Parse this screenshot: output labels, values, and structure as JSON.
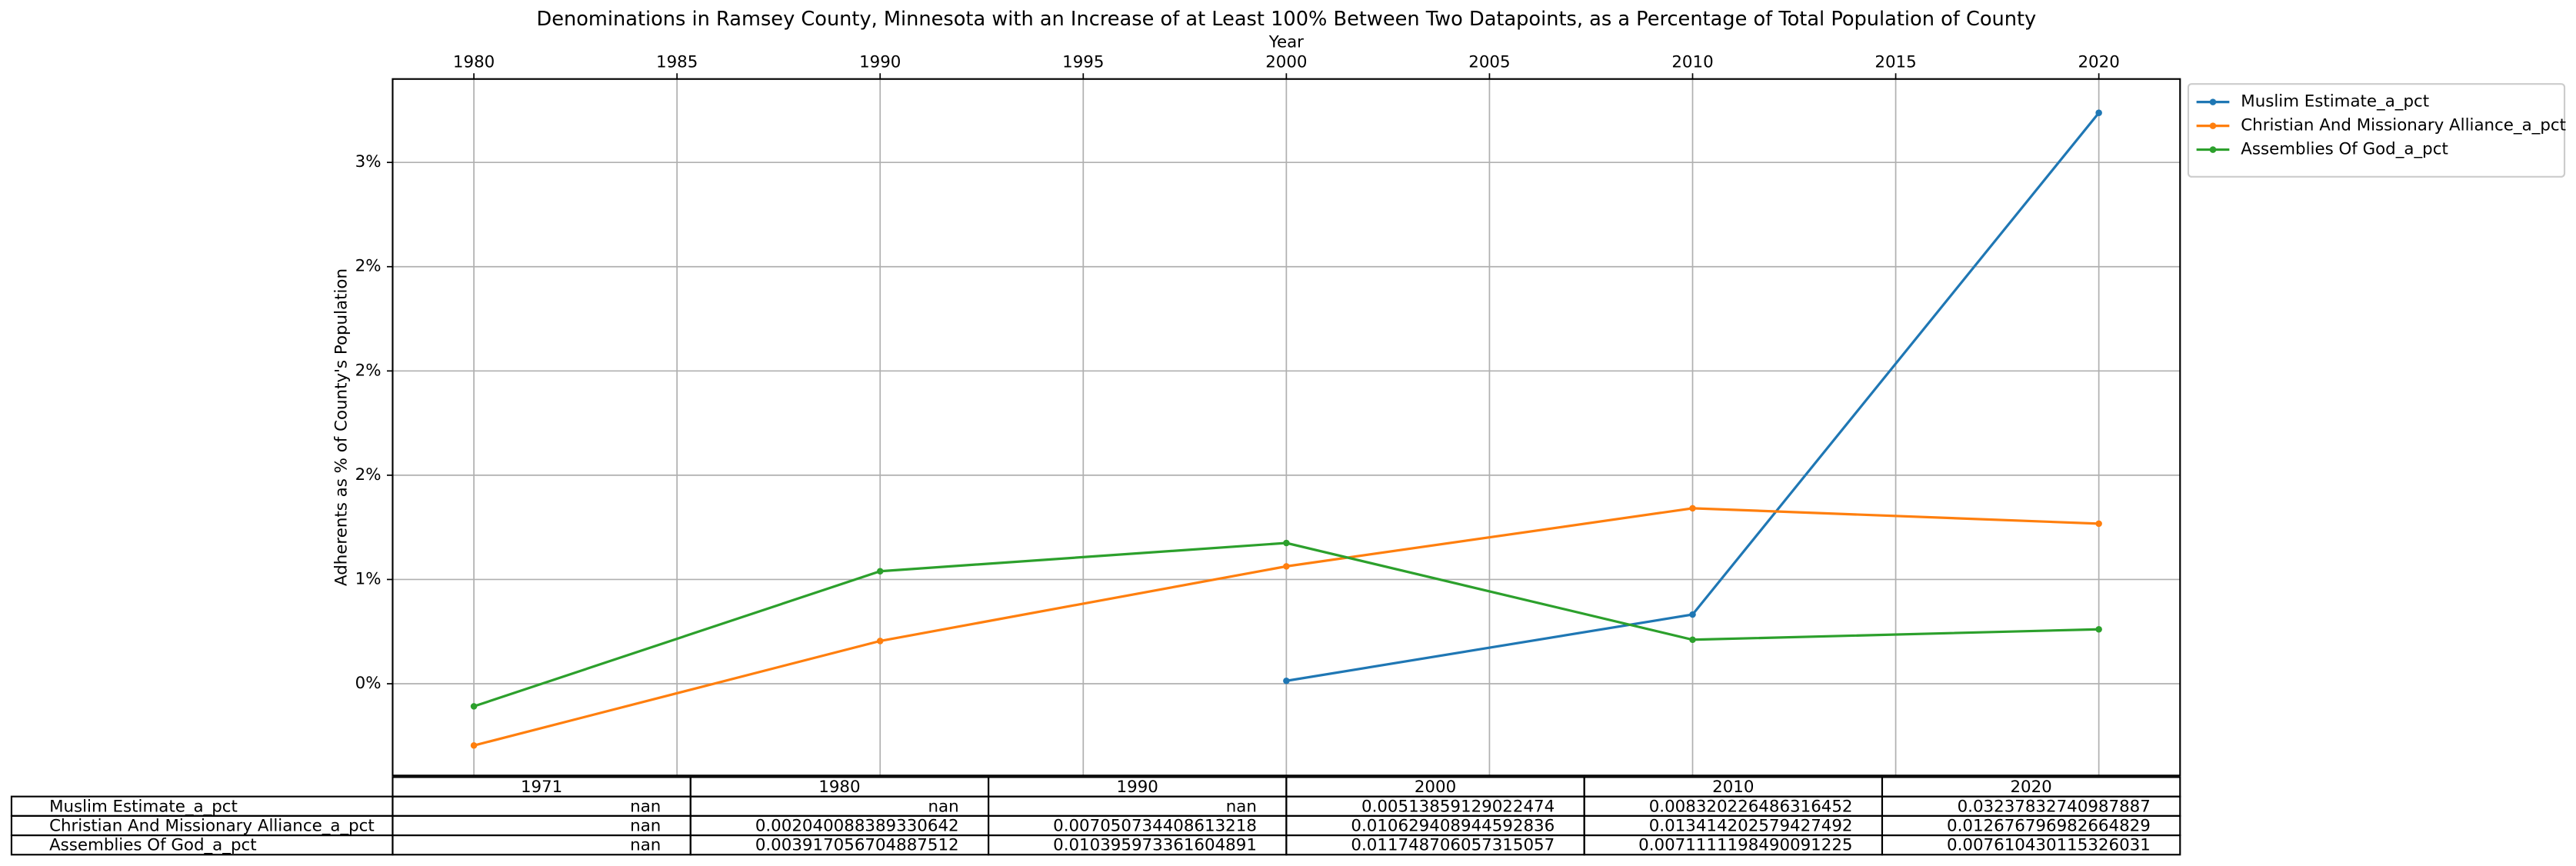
{
  "chart_data": {
    "type": "line",
    "title": "Denominations in Ramsey County, Minnesota with an Increase of at Least 100% Between Two Datapoints, as a Percentage of Total Population of County",
    "x_label": "Year",
    "y_label": "Adherents as % of County's Population",
    "x": [
      1980,
      1990,
      2000,
      2010,
      2020
    ],
    "series": [
      {
        "name": "Muslim Estimate_a_pct",
        "color": "#1f77b4",
        "values": [
          null,
          null,
          0.00513859129022474,
          0.008320226486316452,
          0.03237832740987887
        ]
      },
      {
        "name": "Christian And Missionary Alliance_a_pct",
        "color": "#ff7f0e",
        "values": [
          0.002040088389330642,
          0.007050734408613218,
          0.010629408944592836,
          0.013414202579427492,
          0.012676796982664829
        ]
      },
      {
        "name": "Assemblies Of God_a_pct",
        "color": "#2ca02c",
        "values": [
          0.003917056704887512,
          0.010395973361604891,
          0.011748706057315057,
          0.0071111198490091225,
          0.007610430115326031
        ]
      }
    ],
    "xlim": [
      1978,
      2022
    ],
    "xticks": [
      1980,
      1985,
      1990,
      1995,
      2000,
      2005,
      2010,
      2015,
      2020
    ],
    "x_axis_position": "top",
    "ylim": [
      0.0006,
      0.034
    ],
    "yticks": [
      {
        "value": 0.005,
        "label": "0%"
      },
      {
        "value": 0.01,
        "label": "1%"
      },
      {
        "value": 0.015,
        "label": "2%"
      },
      {
        "value": 0.02,
        "label": "2%"
      },
      {
        "value": 0.025,
        "label": "2%"
      },
      {
        "value": 0.03,
        "label": "3%"
      }
    ],
    "grid": true,
    "legend": "outside upper right"
  },
  "table": {
    "columns": [
      "1971",
      "1980",
      "1990",
      "2000",
      "2010",
      "2020"
    ],
    "rows": [
      {
        "label": "Muslim Estimate_a_pct",
        "cells": [
          "nan",
          "nan",
          "nan",
          0.00513859129022474,
          0.008320226486316452,
          0.03237832740987887
        ]
      },
      {
        "label": "Christian And Missionary Alliance_a_pct",
        "cells": [
          "nan",
          0.002040088389330642,
          0.007050734408613218,
          0.010629408944592836,
          0.013414202579427492,
          0.012676796982664829
        ]
      },
      {
        "label": "Assemblies Of God_a_pct",
        "cells": [
          "nan",
          0.003917056704887512,
          0.010395973361604891,
          0.011748706057315057,
          0.0071111198490091225,
          0.007610430115326031
        ]
      }
    ]
  }
}
